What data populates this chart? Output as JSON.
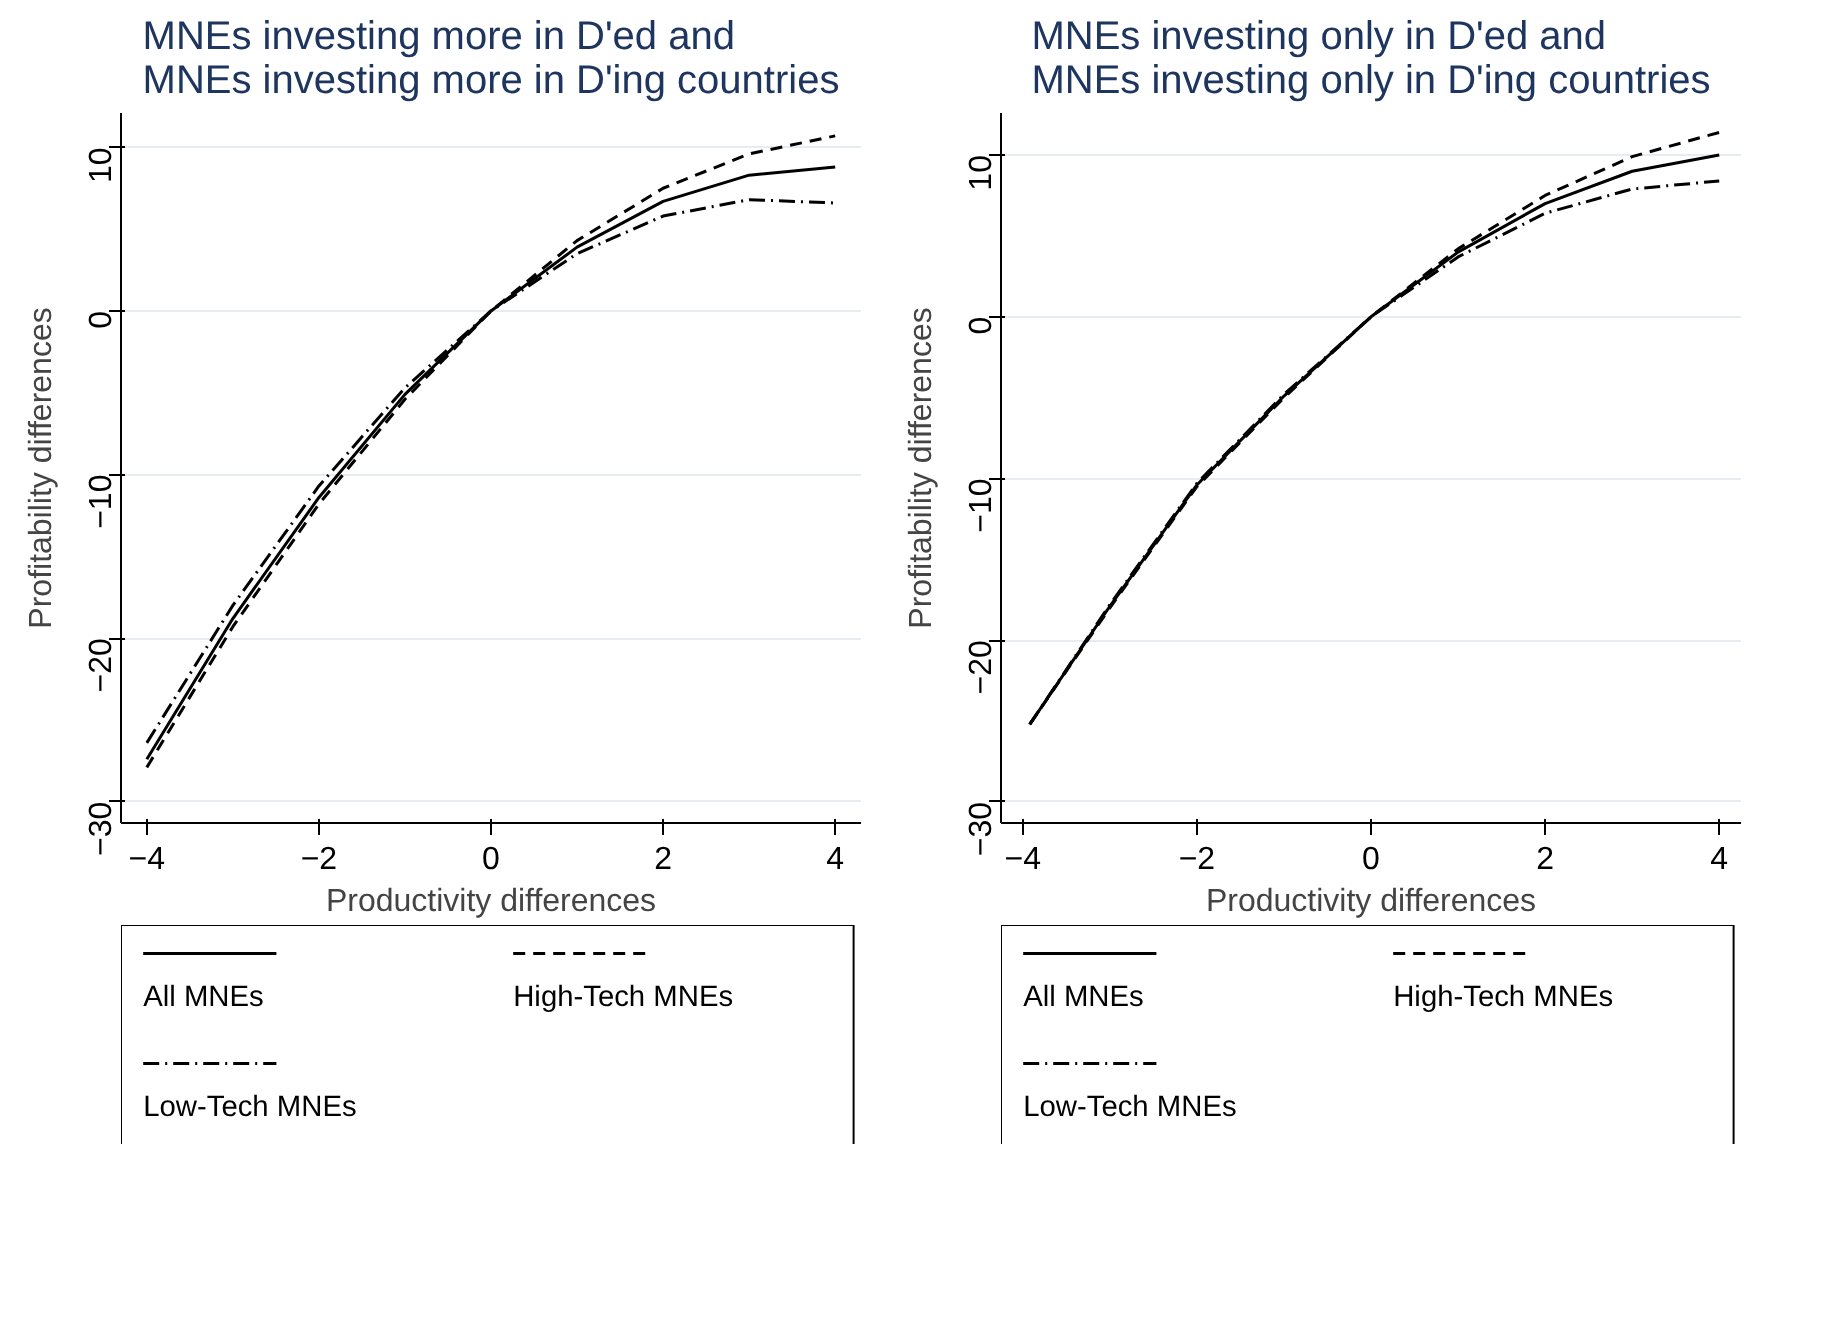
{
  "chart_data": [
    {
      "type": "line",
      "title": "MNEs investing more in D'ed and\nMNEs investing more in D'ing countries",
      "xlabel": "Productivity differences",
      "ylabel": "Profitability differences",
      "x": [
        -4,
        -3,
        -2,
        -1,
        0,
        1,
        2,
        3,
        4
      ],
      "xlim": [
        -4.3,
        4.3
      ],
      "ylim": [
        -31.3,
        12.1
      ],
      "xticks": [
        -4,
        -2,
        0,
        2,
        4
      ],
      "yticks": [
        -30,
        -20,
        -10,
        0,
        10
      ],
      "grid": "y",
      "legend": "bottom",
      "marker": "none",
      "series": [
        {
          "name": "All MNEs",
          "color": "#000000",
          "line_style": "solid",
          "values": [
            -27.4,
            -18.8,
            -11.4,
            -5.1,
            0,
            3.9,
            6.7,
            8.3,
            8.8
          ]
        },
        {
          "name": "High-Tech MNEs",
          "color": "#000000",
          "line_style": "dashed",
          "values": [
            -27.9,
            -19.3,
            -11.8,
            -5.4,
            0,
            4.3,
            7.5,
            9.6,
            10.7
          ]
        },
        {
          "name": "Low-Tech MNEs",
          "color": "#000000",
          "line_style": "dashdot",
          "values": [
            -26.4,
            -18.0,
            -10.7,
            -4.7,
            0,
            3.5,
            5.8,
            6.8,
            6.6
          ]
        }
      ]
    },
    {
      "type": "line",
      "title": "MNEs investing only in D'ed and\nMNEs investing only in D'ing countries",
      "xlabel": "Productivity differences",
      "ylabel": "Profitability differences",
      "x": [
        -3.92,
        -3,
        -2,
        -1,
        0,
        1,
        2,
        3,
        4
      ],
      "xlim": [
        -4.25,
        4.25
      ],
      "ylim": [
        -31.3,
        12.6
      ],
      "xticks": [
        -4,
        -2,
        0,
        2,
        4
      ],
      "yticks": [
        -30,
        -20,
        -10,
        0,
        10
      ],
      "grid": "y",
      "legend": "bottom",
      "marker": "none",
      "series": [
        {
          "name": "All MNEs",
          "color": "#000000",
          "line_style": "solid",
          "values": [
            -25.2,
            -17.9,
            -10.4,
            -4.9,
            0,
            4.0,
            7.0,
            9.0,
            10.0
          ]
        },
        {
          "name": "High-Tech MNEs",
          "color": "#000000",
          "line_style": "dashed",
          "values": [
            -25.2,
            -18.0,
            -10.5,
            -5.0,
            0,
            4.2,
            7.5,
            9.9,
            11.4
          ]
        },
        {
          "name": "Low-Tech MNEs",
          "color": "#000000",
          "line_style": "dashdot",
          "values": [
            -25.2,
            -17.8,
            -10.3,
            -4.8,
            0,
            3.7,
            6.4,
            7.9,
            8.4
          ]
        }
      ]
    }
  ]
}
